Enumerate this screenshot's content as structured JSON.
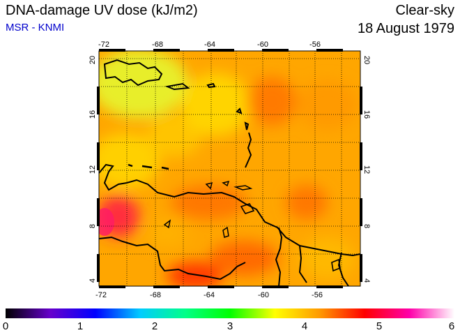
{
  "header": {
    "title": "DNA-damage UV dose (kJ/m2)",
    "source": "MSR - KNMI",
    "condition": "Clear-sky",
    "date": "18 August 1979"
  },
  "map": {
    "lon_range": [
      -72,
      -52.5
    ],
    "lat_range": [
      3.5,
      20.5
    ],
    "lon_ticks": [
      "-72",
      "-68",
      "-64",
      "-60",
      "-56"
    ],
    "lat_ticks": [
      "4",
      "8",
      "12",
      "16",
      "20"
    ],
    "colors": {
      "land_outline": "#000000",
      "grid": "#000000"
    }
  },
  "colorbar": {
    "min": 0,
    "max": 6,
    "tick_labels": [
      "0",
      "1",
      "2",
      "3",
      "4",
      "5",
      "6"
    ],
    "colors": [
      "#000000",
      "#6600cc",
      "#0000ff",
      "#00ccff",
      "#00ff88",
      "#00ff00",
      "#ffff00",
      "#ff9900",
      "#ff0000",
      "#ff00aa",
      "#ffffff"
    ]
  }
}
